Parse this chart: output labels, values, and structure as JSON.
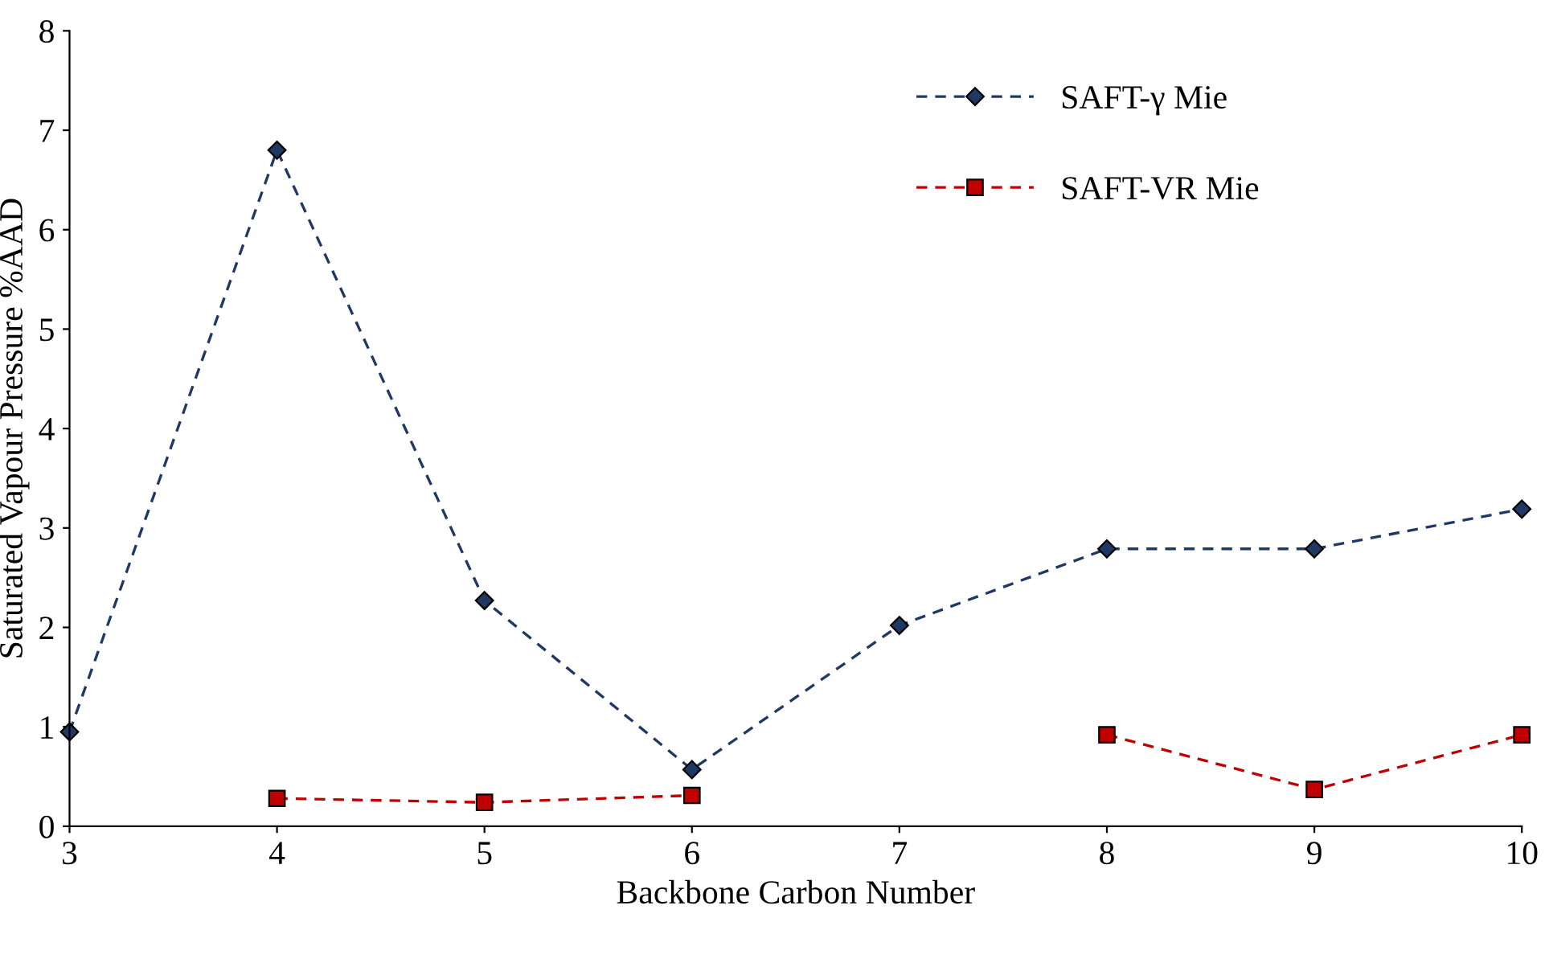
{
  "chart_data": {
    "type": "line",
    "xlabel": "Backbone Carbon Number",
    "ylabel": "Saturated Vapour Pressure %AAD",
    "x": [
      3,
      4,
      5,
      6,
      7,
      8,
      9,
      10
    ],
    "series": [
      {
        "name": "SAFT-γ Mie",
        "color": "#1f3864",
        "marker": "diamond",
        "line_style": "dashed",
        "values": [
          0.95,
          6.8,
          2.27,
          0.57,
          2.02,
          2.79,
          2.79,
          3.19
        ]
      },
      {
        "name": "SAFT-VR Mie",
        "color": "#c00000",
        "marker": "square",
        "line_style": "dashed",
        "values": [
          null,
          0.28,
          0.24,
          0.31,
          null,
          0.92,
          0.37,
          0.92
        ]
      }
    ],
    "xlim": [
      3,
      10
    ],
    "xticks": [
      3,
      4,
      5,
      6,
      7,
      8,
      9,
      10
    ],
    "ylim": [
      0,
      8
    ],
    "yticks": [
      0,
      1,
      2,
      3,
      4,
      5,
      6,
      7,
      8
    ],
    "grid": false,
    "legend": "top right"
  }
}
